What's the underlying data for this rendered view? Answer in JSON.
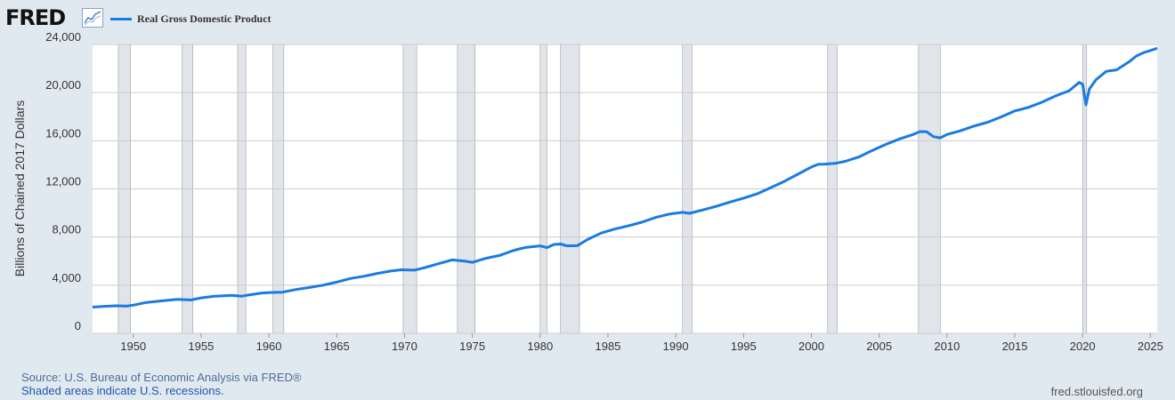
{
  "header": {
    "logo_text": "FRED",
    "logo_icon": "line-chart-icon"
  },
  "footer": {
    "source": "Source: U.S. Bureau of Economic Analysis via FRED®",
    "note": "Shaded areas indicate U.S. recessions.",
    "url": "fred.stlouisfed.org"
  },
  "colors": {
    "background": "#e1e9f0",
    "plot_background": "#ffffff",
    "line": "#1a7be0",
    "recession": "#e1e5ea",
    "grid": "#cccccc"
  },
  "chart_data": {
    "type": "line",
    "title": "",
    "xlabel": "",
    "ylabel": "Billions of Chained 2017 Dollars",
    "xlim": [
      1947.0,
      2025.5
    ],
    "ylim": [
      0,
      24000
    ],
    "grid": "horizontal",
    "legend_placement": "top-left",
    "x_ticks": [
      1950,
      1955,
      1960,
      1965,
      1970,
      1975,
      1980,
      1985,
      1990,
      1995,
      2000,
      2005,
      2010,
      2015,
      2020,
      2025
    ],
    "y_ticks": [
      0,
      4000,
      8000,
      12000,
      16000,
      20000,
      24000
    ],
    "y_tick_labels": [
      "0",
      "4,000",
      "8,000",
      "12,000",
      "16,000",
      "20,000",
      "24,000"
    ],
    "recessions": [
      [
        1948.9,
        1949.8
      ],
      [
        1953.6,
        1954.4
      ],
      [
        1957.7,
        1958.3
      ],
      [
        1960.3,
        1961.1
      ],
      [
        1969.9,
        1970.9
      ],
      [
        1973.9,
        1975.2
      ],
      [
        1980.0,
        1980.5
      ],
      [
        1981.5,
        1982.9
      ],
      [
        1990.5,
        1991.2
      ],
      [
        2001.2,
        2001.9
      ],
      [
        2007.9,
        2009.5
      ],
      [
        2020.0,
        2020.3
      ]
    ],
    "series": [
      {
        "name": "Real Gross Domestic Product",
        "x": [
          1947.0,
          1948.0,
          1948.75,
          1949.5,
          1950.0,
          1950.5,
          1951.0,
          1952.0,
          1953.25,
          1953.75,
          1954.25,
          1955.0,
          1956.0,
          1957.25,
          1958.0,
          1958.5,
          1959.5,
          1960.25,
          1961.0,
          1962.0,
          1963.0,
          1964.0,
          1965.0,
          1966.0,
          1967.0,
          1968.0,
          1969.0,
          1969.75,
          1970.75,
          1971.5,
          1972.5,
          1973.5,
          1974.0,
          1974.5,
          1975.0,
          1976.0,
          1977.0,
          1978.0,
          1978.5,
          1979.0,
          1980.0,
          1980.5,
          1981.0,
          1981.5,
          1982.0,
          1982.75,
          1983.5,
          1984.5,
          1985.5,
          1986.5,
          1987.5,
          1988.5,
          1989.5,
          1990.5,
          1991.0,
          1992.0,
          1993.0,
          1994.0,
          1995.0,
          1996.0,
          1997.0,
          1998.0,
          1999.0,
          2000.0,
          2000.5,
          2001.0,
          2001.75,
          2002.5,
          2003.5,
          2004.5,
          2005.5,
          2006.5,
          2007.5,
          2008.0,
          2008.5,
          2009.0,
          2009.5,
          2010.0,
          2011.0,
          2012.0,
          2013.0,
          2014.0,
          2015.0,
          2016.0,
          2017.0,
          2018.0,
          2019.0,
          2019.75,
          2020.0,
          2020.25,
          2020.5,
          2021.0,
          2021.75,
          2022.5,
          2023.0,
          2023.5,
          2024.0,
          2024.5,
          2025.0,
          2025.5
        ],
        "values": [
          2180,
          2250,
          2290,
          2260,
          2340,
          2460,
          2570,
          2690,
          2820,
          2800,
          2770,
          2950,
          3080,
          3150,
          3090,
          3180,
          3350,
          3400,
          3420,
          3640,
          3810,
          4000,
          4250,
          4560,
          4740,
          4980,
          5180,
          5280,
          5250,
          5460,
          5780,
          6100,
          6050,
          5990,
          5890,
          6230,
          6470,
          6870,
          7020,
          7150,
          7270,
          7120,
          7380,
          7420,
          7270,
          7290,
          7800,
          8330,
          8660,
          8930,
          9230,
          9620,
          9900,
          10050,
          9970,
          10250,
          10550,
          10910,
          11230,
          11590,
          12100,
          12620,
          13220,
          13820,
          14040,
          14060,
          14120,
          14290,
          14650,
          15200,
          15700,
          16150,
          16520,
          16760,
          16750,
          16340,
          16240,
          16520,
          16830,
          17220,
          17540,
          17980,
          18480,
          18770,
          19200,
          19720,
          20150,
          20850,
          20690,
          18980,
          20300,
          21080,
          21770,
          21890,
          22250,
          22620,
          23060,
          23320,
          23500,
          23680
        ]
      }
    ]
  }
}
